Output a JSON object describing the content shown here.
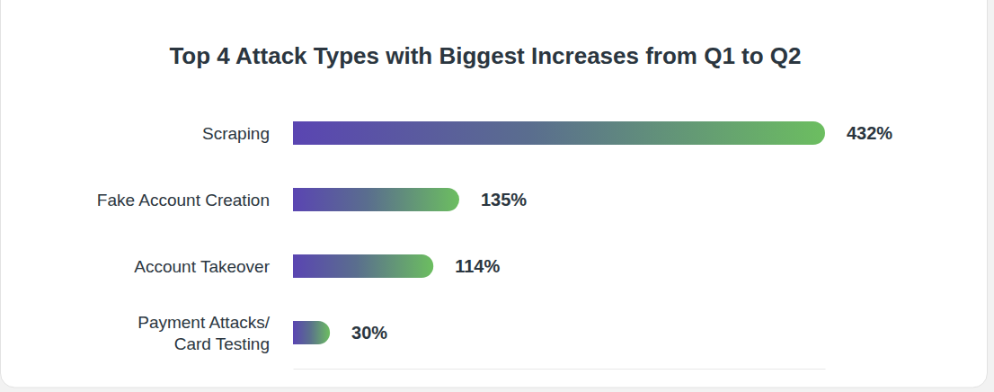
{
  "chart_data": {
    "type": "bar",
    "title": "Top 4 Attack Types with Biggest Increases from Q1 to Q2",
    "categories": [
      "Scraping",
      "Fake Account Creation",
      "Account Takeover",
      "Payment Attacks/\nCard Testing"
    ],
    "values": [
      432,
      135,
      114,
      30
    ],
    "value_labels": [
      "432%",
      "135%",
      "114%",
      "30%"
    ],
    "xlim": [
      0,
      432
    ],
    "orientation": "horizontal",
    "data_labels": true,
    "tick_labels": false,
    "grid": false
  }
}
